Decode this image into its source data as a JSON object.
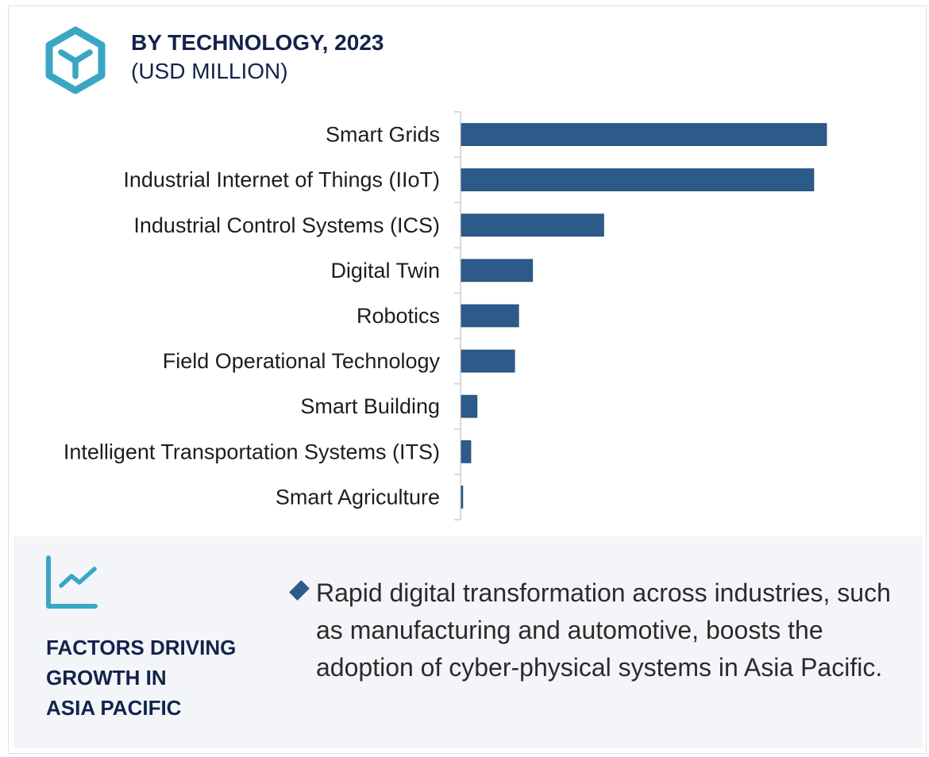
{
  "header": {
    "icon": "hexagon-y-icon",
    "title": "BY TECHNOLOGY, 2023",
    "subtitle": "(USD MILLION)"
  },
  "colors": {
    "bar": "#2c5b8a",
    "title": "#13234b",
    "icon_accent": "#3aa6c4",
    "panel_bg": "#f3f5f9",
    "axis": "#d9d9d9"
  },
  "chart_data": {
    "type": "bar",
    "orientation": "horizontal",
    "title": "BY TECHNOLOGY, 2023",
    "subtitle": "(USD MILLION)",
    "xlabel": "",
    "ylabel": "",
    "value_note": "No value axis shown; values are relative indices (largest = 100) estimated from bar lengths",
    "categories": [
      "Smart Grids",
      "Industrial Internet of Things (IIoT)",
      "Industrial Control Systems (ICS)",
      "Digital Twin",
      "Robotics",
      "Field Operational Technology",
      "Smart Building",
      "Intelligent Transportation Systems (ITS)",
      "Smart Agriculture"
    ],
    "values": [
      100,
      96.5,
      39,
      19.5,
      15.7,
      14.6,
      4.3,
      2.6,
      0.4
    ],
    "xlim": [
      0,
      100
    ],
    "grid": false,
    "legend": "none"
  },
  "factors": {
    "icon": "trend-chart-icon",
    "heading_lines": [
      "FACTORS DRIVING",
      "GROWTH IN",
      "ASIA PACIFIC"
    ],
    "bullet_icon": "diamond-bullet-icon",
    "bullet_text": "Rapid digital transformation across industries, such as manufacturing and automotive, boosts the adoption of cyber-physical systems in Asia Pacific."
  }
}
